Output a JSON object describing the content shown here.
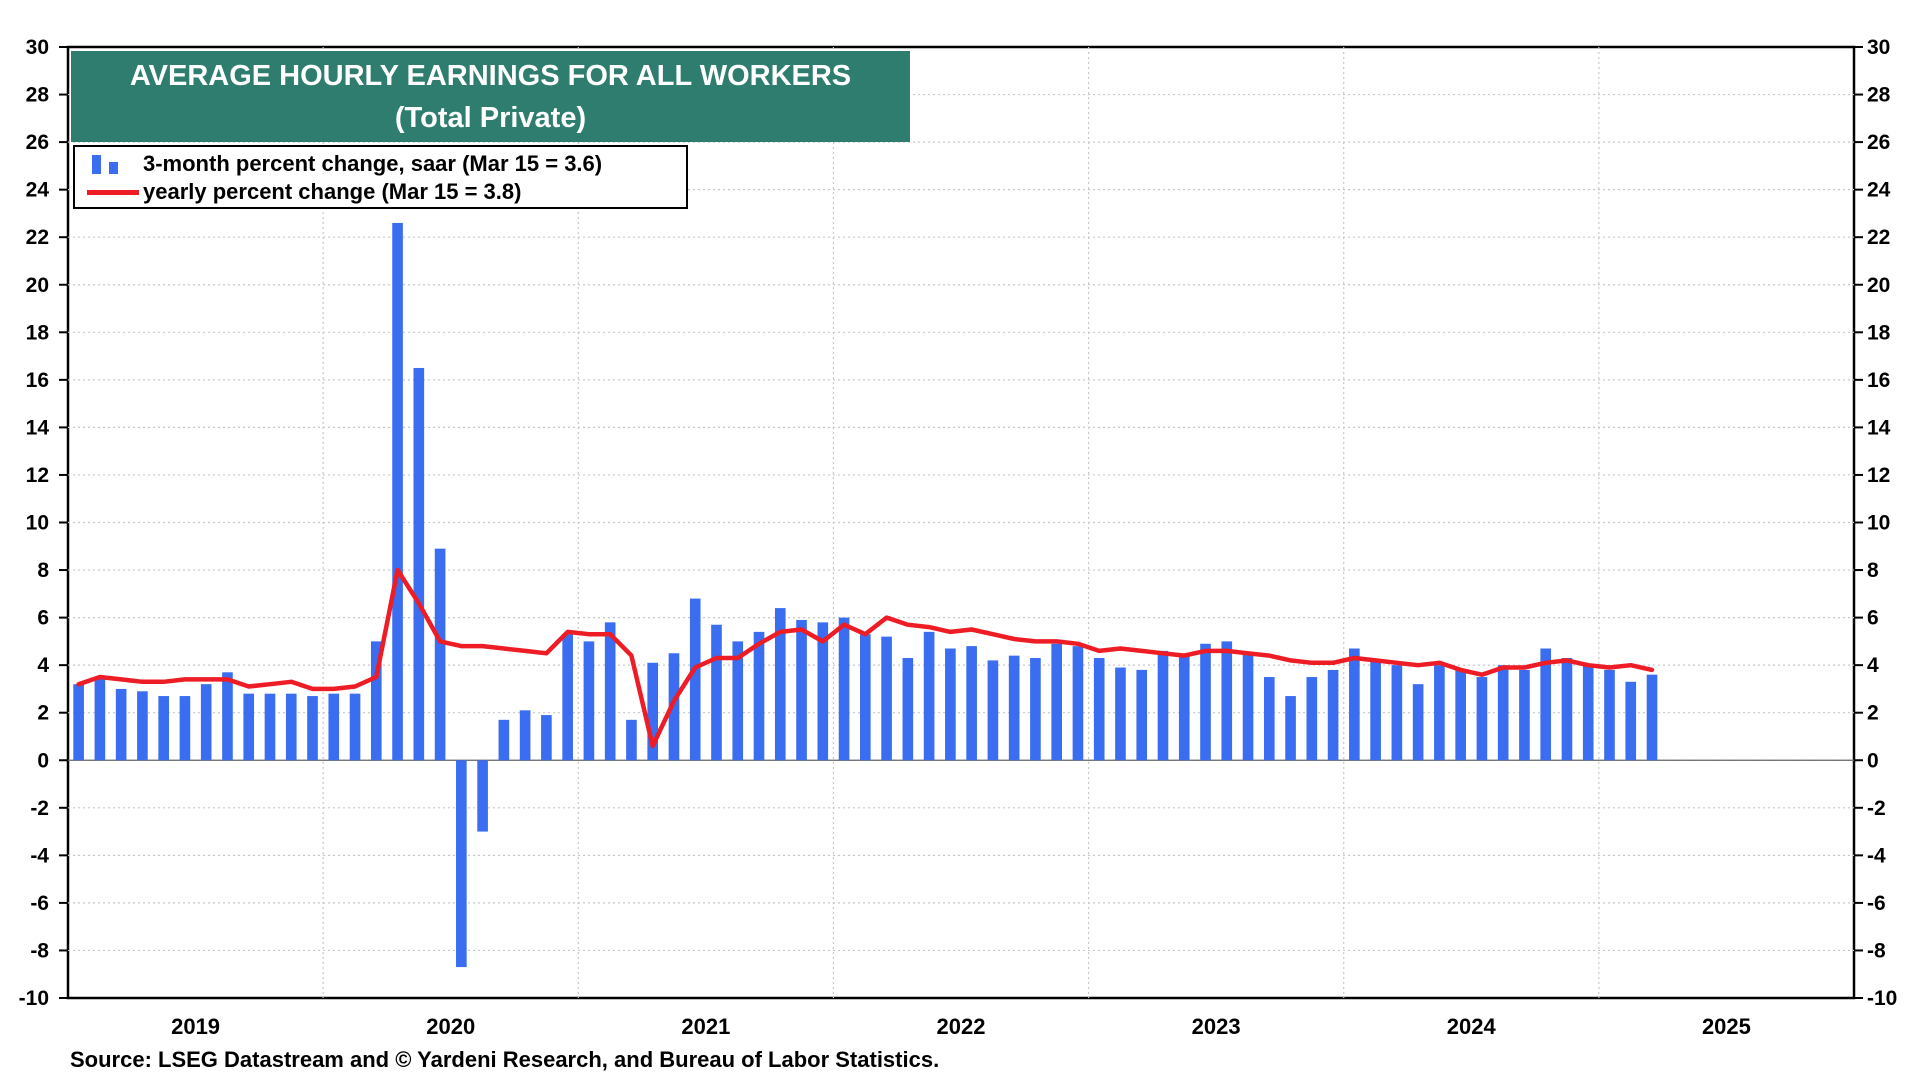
{
  "chart_data": {
    "type": "bar",
    "title": "AVERAGE HOURLY EARNINGS FOR ALL WORKERS",
    "subtitle": "(Total Private)",
    "source": "Source: LSEG Datastream and © Yardeni Research, and Bureau of Labor Statistics.",
    "ylim": [
      -10,
      30
    ],
    "yticks": [
      30,
      28,
      26,
      24,
      22,
      20,
      18,
      16,
      14,
      12,
      10,
      8,
      6,
      4,
      2,
      0,
      -2,
      -4,
      -6,
      -8,
      -10
    ],
    "ytick_labels": [
      "30",
      "28",
      "26",
      "24",
      "22",
      "20",
      "18",
      "16",
      "14",
      "12",
      "10",
      "8",
      "6",
      "4",
      "2",
      "0",
      "-2",
      "-4",
      "-6",
      "-8",
      "-10"
    ],
    "x_start": "2019-01",
    "x_end": "2025-12",
    "year_labels": [
      "2019",
      "2020",
      "2021",
      "2022",
      "2023",
      "2024",
      "2025"
    ],
    "grid": true,
    "legend_position": "top-left",
    "colors": {
      "bars": "#3a6df0",
      "line": "#ee1c25",
      "title_bg": "#2e7d6e"
    },
    "series": [
      {
        "name": "3-month percent change, saar (Mar 15 = 3.6)",
        "type": "bar",
        "start": "2019-01",
        "values": [
          3.2,
          3.5,
          3.0,
          2.9,
          2.7,
          2.7,
          3.2,
          3.7,
          2.8,
          2.8,
          2.8,
          2.7,
          2.8,
          2.8,
          5.0,
          22.6,
          16.5,
          8.9,
          -8.7,
          -3.0,
          1.7,
          2.1,
          1.9,
          5.3,
          5.0,
          5.8,
          1.7,
          4.1,
          4.5,
          6.8,
          5.7,
          5.0,
          5.4,
          6.4,
          5.9,
          5.8,
          6.0,
          5.3,
          5.2,
          4.3,
          5.4,
          4.7,
          4.8,
          4.2,
          4.4,
          4.3,
          4.9,
          4.8,
          4.3,
          3.9,
          3.8,
          4.6,
          4.4,
          4.9,
          5.0,
          4.5,
          3.5,
          2.7,
          3.5,
          3.8,
          4.7,
          4.2,
          4.0,
          3.2,
          4.0,
          3.8,
          3.5,
          4.0,
          3.8,
          4.7,
          4.3,
          4.0,
          3.8,
          3.3,
          3.6
        ]
      },
      {
        "name": "yearly percent change (Mar 15 = 3.8)",
        "type": "line",
        "start": "2019-01",
        "values": [
          3.2,
          3.5,
          3.4,
          3.3,
          3.3,
          3.4,
          3.4,
          3.4,
          3.1,
          3.2,
          3.3,
          3.0,
          3.0,
          3.1,
          3.5,
          8.0,
          6.6,
          5.0,
          4.8,
          4.8,
          4.7,
          4.6,
          4.5,
          5.4,
          5.3,
          5.3,
          4.4,
          0.6,
          2.5,
          3.9,
          4.3,
          4.3,
          4.9,
          5.4,
          5.5,
          5.0,
          5.7,
          5.3,
          6.0,
          5.7,
          5.6,
          5.4,
          5.5,
          5.3,
          5.1,
          5.0,
          5.0,
          4.9,
          4.6,
          4.7,
          4.6,
          4.5,
          4.4,
          4.6,
          4.6,
          4.5,
          4.4,
          4.2,
          4.1,
          4.1,
          4.3,
          4.2,
          4.1,
          4.0,
          4.1,
          3.8,
          3.6,
          3.9,
          3.9,
          4.1,
          4.2,
          4.0,
          3.9,
          4.0,
          3.8
        ]
      }
    ]
  }
}
